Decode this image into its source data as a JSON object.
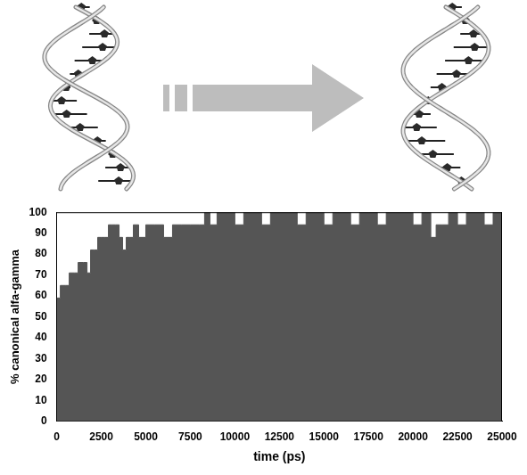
{
  "chart_data": {
    "type": "area",
    "x_label": "time (ps)",
    "y_label": "% canonical alfa-gamma",
    "x": [
      0,
      200,
      500,
      700,
      1000,
      1200,
      1500,
      1700,
      1900,
      2100,
      2300,
      2500,
      2700,
      2900,
      3100,
      3300,
      3500,
      3700,
      3900,
      4100,
      4300,
      4600,
      5000,
      5500,
      6000,
      6500,
      7000,
      7500,
      8000,
      8300,
      8600,
      9000,
      9500,
      10000,
      10500,
      11000,
      11500,
      12000,
      12500,
      13000,
      13500,
      14000,
      14500,
      15000,
      15500,
      16000,
      16500,
      17000,
      17500,
      18000,
      18500,
      19000,
      19500,
      20000,
      20500,
      21000,
      21300,
      21600,
      22000,
      22500,
      23000,
      23500,
      24000,
      24500,
      25000
    ],
    "values": [
      59,
      65,
      65,
      71,
      71,
      76,
      76,
      71,
      82,
      82,
      88,
      88,
      88,
      94,
      94,
      94,
      88,
      82,
      88,
      88,
      94,
      88,
      94,
      94,
      88,
      94,
      94,
      94,
      94,
      100,
      94,
      100,
      100,
      94,
      100,
      100,
      94,
      100,
      100,
      100,
      94,
      100,
      100,
      94,
      100,
      100,
      94,
      100,
      100,
      94,
      100,
      100,
      100,
      94,
      100,
      88,
      94,
      94,
      100,
      94,
      100,
      100,
      94,
      100,
      100
    ],
    "color": "#555555",
    "xlim": [
      0,
      25000
    ],
    "xticks": [
      0,
      2500,
      5000,
      7500,
      10000,
      12500,
      15000,
      17500,
      20000,
      22500,
      25000
    ],
    "ylim": [
      0,
      100
    ],
    "yticks": [
      0,
      10,
      20,
      30,
      40,
      50,
      60,
      70,
      80,
      90,
      100
    ],
    "grid": false
  }
}
